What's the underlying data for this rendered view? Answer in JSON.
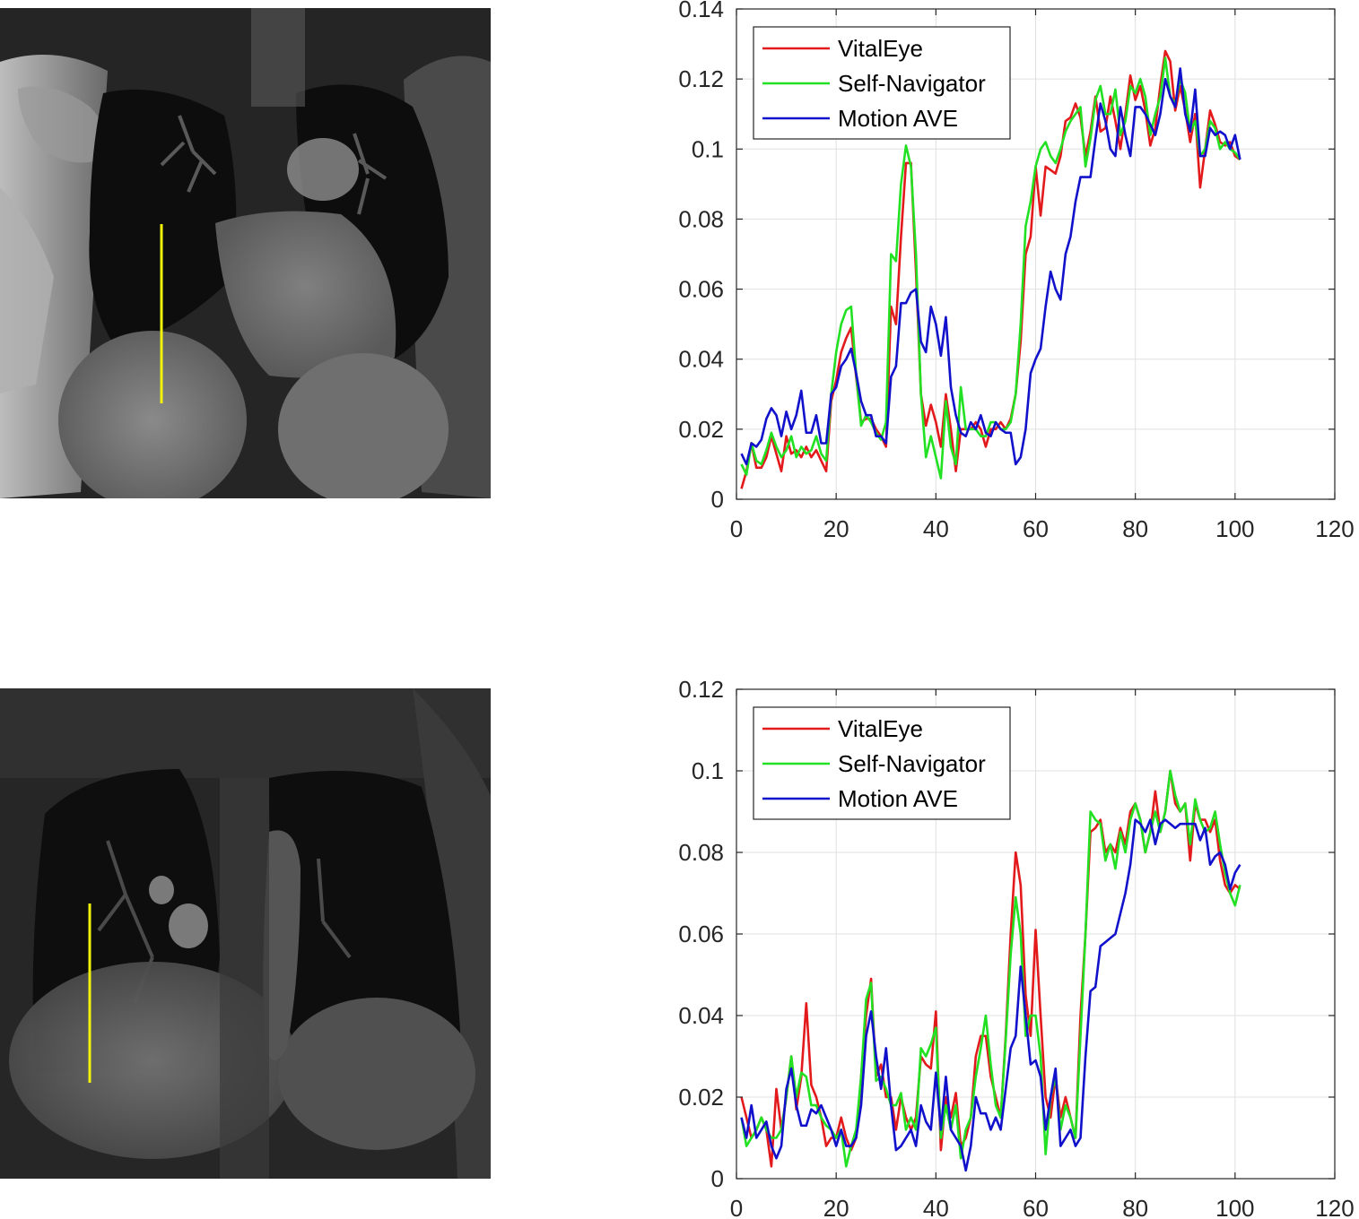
{
  "colors": {
    "vitaleye": "#e31a1c",
    "self_navigator": "#22e022",
    "motion_ave": "#1111cc",
    "probe_line": "#f2f20a",
    "axis": "#262626",
    "grid": "#e0e0e0"
  },
  "images": [
    {
      "description_icon": "coronal-chest-mri-icon",
      "probe": "vertical-yellow-line"
    },
    {
      "description_icon": "coronal-chest-mri-icon",
      "probe": "vertical-yellow-line"
    }
  ],
  "chart_data": [
    {
      "type": "line",
      "title": "",
      "xlabel": "",
      "ylabel": "",
      "xlim": [
        0,
        120
      ],
      "ylim": [
        0,
        0.14
      ],
      "xticks": [
        0,
        20,
        40,
        60,
        80,
        100,
        120
      ],
      "xtick_labels": [
        "0",
        "20",
        "40",
        "60",
        "80",
        "100",
        "120"
      ],
      "yticks": [
        0,
        0.02,
        0.04,
        0.06,
        0.08,
        0.1,
        0.12,
        0.14
      ],
      "ytick_labels": [
        "0",
        "0.02",
        "0.04",
        "0.06",
        "0.08",
        "0.1",
        "0.12",
        "0.14"
      ],
      "grid": true,
      "legend_position": "top-left",
      "x_start": 1,
      "series": [
        {
          "name": "VitalEye",
          "color_key": "vitaleye",
          "values": [
            0.003,
            0.008,
            0.016,
            0.009,
            0.009,
            0.012,
            0.018,
            0.013,
            0.008,
            0.018,
            0.013,
            0.014,
            0.012,
            0.015,
            0.012,
            0.014,
            0.011,
            0.008,
            0.028,
            0.034,
            0.042,
            0.046,
            0.049,
            0.035,
            0.022,
            0.023,
            0.023,
            0.02,
            0.018,
            0.015,
            0.055,
            0.05,
            0.075,
            0.096,
            0.096,
            0.065,
            0.03,
            0.021,
            0.027,
            0.022,
            0.015,
            0.03,
            0.02,
            0.008,
            0.02,
            0.02,
            0.02,
            0.022,
            0.02,
            0.015,
            0.02,
            0.02,
            0.022,
            0.02,
            0.023,
            0.03,
            0.045,
            0.07,
            0.075,
            0.095,
            0.081,
            0.095,
            0.094,
            0.093,
            0.098,
            0.108,
            0.109,
            0.113,
            0.109,
            0.098,
            0.105,
            0.115,
            0.105,
            0.106,
            0.115,
            0.108,
            0.1,
            0.11,
            0.121,
            0.114,
            0.118,
            0.111,
            0.101,
            0.106,
            0.118,
            0.128,
            0.125,
            0.111,
            0.118,
            0.111,
            0.102,
            0.11,
            0.089,
            0.1,
            0.111,
            0.107,
            0.102,
            0.101,
            0.102,
            0.098,
            0.097
          ]
        },
        {
          "name": "Self-Navigator",
          "color_key": "self_navigator",
          "values": [
            0.01,
            0.007,
            0.016,
            0.011,
            0.01,
            0.014,
            0.019,
            0.015,
            0.012,
            0.014,
            0.018,
            0.012,
            0.015,
            0.013,
            0.014,
            0.018,
            0.013,
            0.011,
            0.03,
            0.042,
            0.05,
            0.054,
            0.055,
            0.036,
            0.021,
            0.024,
            0.022,
            0.019,
            0.017,
            0.022,
            0.07,
            0.068,
            0.09,
            0.101,
            0.095,
            0.07,
            0.03,
            0.012,
            0.018,
            0.012,
            0.006,
            0.028,
            0.015,
            0.01,
            0.032,
            0.02,
            0.02,
            0.02,
            0.018,
            0.018,
            0.022,
            0.022,
            0.02,
            0.02,
            0.022,
            0.03,
            0.05,
            0.078,
            0.085,
            0.095,
            0.1,
            0.102,
            0.098,
            0.096,
            0.1,
            0.105,
            0.108,
            0.11,
            0.112,
            0.095,
            0.103,
            0.114,
            0.118,
            0.11,
            0.11,
            0.117,
            0.104,
            0.108,
            0.118,
            0.116,
            0.12,
            0.115,
            0.104,
            0.11,
            0.115,
            0.126,
            0.115,
            0.113,
            0.12,
            0.116,
            0.105,
            0.108,
            0.098,
            0.1,
            0.108,
            0.106,
            0.1,
            0.102,
            0.1,
            0.099,
            0.097
          ]
        },
        {
          "name": "Motion AVE",
          "color_key": "motion_ave",
          "values": [
            0.013,
            0.01,
            0.016,
            0.015,
            0.017,
            0.023,
            0.026,
            0.024,
            0.018,
            0.025,
            0.02,
            0.024,
            0.031,
            0.019,
            0.019,
            0.024,
            0.016,
            0.016,
            0.03,
            0.032,
            0.038,
            0.04,
            0.043,
            0.036,
            0.028,
            0.024,
            0.024,
            0.018,
            0.018,
            0.016,
            0.035,
            0.038,
            0.056,
            0.056,
            0.059,
            0.06,
            0.045,
            0.042,
            0.055,
            0.05,
            0.041,
            0.052,
            0.032,
            0.024,
            0.019,
            0.018,
            0.022,
            0.02,
            0.024,
            0.019,
            0.018,
            0.022,
            0.02,
            0.019,
            0.019,
            0.01,
            0.012,
            0.02,
            0.036,
            0.04,
            0.043,
            0.055,
            0.065,
            0.06,
            0.057,
            0.07,
            0.075,
            0.085,
            0.092,
            0.092,
            0.092,
            0.103,
            0.113,
            0.108,
            0.1,
            0.098,
            0.112,
            0.104,
            0.098,
            0.112,
            0.112,
            0.11,
            0.107,
            0.104,
            0.11,
            0.12,
            0.115,
            0.112,
            0.123,
            0.11,
            0.105,
            0.117,
            0.098,
            0.098,
            0.106,
            0.104,
            0.105,
            0.104,
            0.1,
            0.104,
            0.097
          ]
        }
      ]
    },
    {
      "type": "line",
      "title": "",
      "xlabel": "",
      "ylabel": "",
      "xlim": [
        0,
        120
      ],
      "ylim": [
        0,
        0.12
      ],
      "xticks": [
        0,
        20,
        40,
        60,
        80,
        100,
        120
      ],
      "xtick_labels": [
        "0",
        "20",
        "40",
        "60",
        "80",
        "100",
        "120"
      ],
      "yticks": [
        0,
        0.02,
        0.04,
        0.06,
        0.08,
        0.1,
        0.12
      ],
      "ytick_labels": [
        "0",
        "0.02",
        "0.04",
        "0.06",
        "0.08",
        "0.1",
        "0.12"
      ],
      "grid": true,
      "legend_position": "top-left",
      "x_start": 1,
      "series": [
        {
          "name": "VitalEye",
          "color_key": "vitaleye",
          "values": [
            0.02,
            0.015,
            0.01,
            0.012,
            0.015,
            0.012,
            0.003,
            0.022,
            0.012,
            0.02,
            0.03,
            0.017,
            0.025,
            0.043,
            0.023,
            0.02,
            0.015,
            0.008,
            0.01,
            0.01,
            0.015,
            0.01,
            0.007,
            0.01,
            0.025,
            0.04,
            0.049,
            0.025,
            0.028,
            0.02,
            0.02,
            0.012,
            0.02,
            0.015,
            0.012,
            0.015,
            0.03,
            0.028,
            0.027,
            0.041,
            0.007,
            0.02,
            0.015,
            0.021,
            0.008,
            0.01,
            0.015,
            0.03,
            0.035,
            0.035,
            0.025,
            0.02,
            0.015,
            0.035,
            0.06,
            0.08,
            0.072,
            0.045,
            0.035,
            0.061,
            0.04,
            0.02,
            0.015,
            0.025,
            0.015,
            0.02,
            0.015,
            0.01,
            0.04,
            0.06,
            0.085,
            0.086,
            0.088,
            0.08,
            0.082,
            0.08,
            0.086,
            0.082,
            0.09,
            0.092,
            0.088,
            0.08,
            0.085,
            0.095,
            0.085,
            0.09,
            0.1,
            0.092,
            0.09,
            0.092,
            0.078,
            0.092,
            0.088,
            0.088,
            0.085,
            0.088,
            0.078,
            0.072,
            0.07,
            0.072,
            0.071
          ]
        },
        {
          "name": "Self-Navigator",
          "color_key": "self_navigator",
          "values": [
            0.015,
            0.008,
            0.01,
            0.012,
            0.015,
            0.012,
            0.01,
            0.01,
            0.012,
            0.02,
            0.03,
            0.02,
            0.026,
            0.025,
            0.018,
            0.018,
            0.015,
            0.013,
            0.012,
            0.01,
            0.012,
            0.003,
            0.008,
            0.012,
            0.025,
            0.044,
            0.048,
            0.024,
            0.025,
            0.022,
            0.018,
            0.018,
            0.021,
            0.012,
            0.015,
            0.012,
            0.032,
            0.03,
            0.033,
            0.037,
            0.01,
            0.018,
            0.012,
            0.018,
            0.005,
            0.012,
            0.015,
            0.025,
            0.032,
            0.04,
            0.028,
            0.018,
            0.015,
            0.034,
            0.055,
            0.069,
            0.06,
            0.035,
            0.04,
            0.04,
            0.03,
            0.006,
            0.02,
            0.025,
            0.012,
            0.018,
            0.015,
            0.01,
            0.035,
            0.06,
            0.09,
            0.088,
            0.087,
            0.078,
            0.082,
            0.076,
            0.085,
            0.08,
            0.088,
            0.092,
            0.088,
            0.08,
            0.085,
            0.09,
            0.085,
            0.09,
            0.1,
            0.094,
            0.09,
            0.092,
            0.082,
            0.093,
            0.088,
            0.085,
            0.086,
            0.09,
            0.082,
            0.075,
            0.07,
            0.067,
            0.072
          ]
        },
        {
          "name": "Motion AVE",
          "color_key": "motion_ave",
          "values": [
            0.015,
            0.01,
            0.018,
            0.01,
            0.012,
            0.014,
            0.008,
            0.005,
            0.008,
            0.022,
            0.027,
            0.018,
            0.013,
            0.013,
            0.017,
            0.016,
            0.018,
            0.015,
            0.012,
            0.008,
            0.012,
            0.008,
            0.008,
            0.01,
            0.018,
            0.035,
            0.041,
            0.03,
            0.022,
            0.032,
            0.018,
            0.007,
            0.008,
            0.01,
            0.012,
            0.008,
            0.018,
            0.014,
            0.012,
            0.026,
            0.012,
            0.025,
            0.012,
            0.01,
            0.008,
            0.002,
            0.008,
            0.02,
            0.016,
            0.016,
            0.012,
            0.015,
            0.012,
            0.022,
            0.032,
            0.035,
            0.052,
            0.04,
            0.028,
            0.029,
            0.025,
            0.012,
            0.02,
            0.027,
            0.008,
            0.01,
            0.012,
            0.008,
            0.01,
            0.03,
            0.046,
            0.047,
            0.057,
            0.058,
            0.059,
            0.06,
            0.065,
            0.07,
            0.077,
            0.088,
            0.087,
            0.085,
            0.088,
            0.082,
            0.087,
            0.088,
            0.087,
            0.086,
            0.087,
            0.087,
            0.087,
            0.087,
            0.083,
            0.086,
            0.077,
            0.079,
            0.08,
            0.077,
            0.071,
            0.075,
            0.077
          ]
        }
      ]
    }
  ]
}
